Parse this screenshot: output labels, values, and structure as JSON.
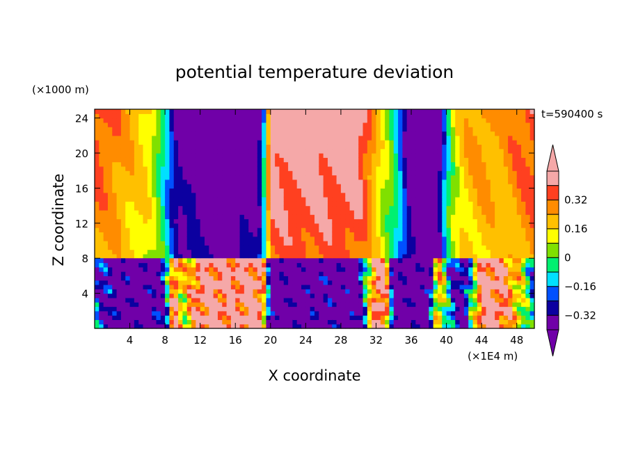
{
  "chart_data": {
    "type": "heatmap",
    "title": "potential temperature deviation",
    "xlabel": "X coordinate",
    "ylabel": "Z coordinate",
    "x_unit_label": "(×1E4 m)",
    "y_unit_label": "(×1000 m)",
    "time_label": "t=590400 s",
    "xlim": [
      0,
      50
    ],
    "ylim": [
      0,
      25
    ],
    "x_ticks": [
      4,
      8,
      12,
      16,
      20,
      24,
      28,
      32,
      36,
      40,
      44,
      48
    ],
    "x_tick_labels": [
      "4",
      "8",
      "12",
      "16",
      "20",
      "24",
      "28",
      "32",
      "36",
      "40",
      "44",
      "48"
    ],
    "y_ticks": [
      4,
      8,
      12,
      16,
      20,
      24
    ],
    "y_tick_labels": [
      "4",
      "8",
      "12",
      "16",
      "20",
      "24"
    ],
    "colorbar": {
      "levels": [
        -0.4,
        -0.32,
        -0.24,
        -0.16,
        -0.08,
        0,
        0.08,
        0.16,
        0.24,
        0.32,
        0.4
      ],
      "tick_values": [
        -0.32,
        -0.16,
        0,
        0.16,
        0.32
      ],
      "tick_labels": [
        "−0.32",
        "−0.16",
        "0",
        "0.16",
        "0.32"
      ],
      "below_color": "#7000a8",
      "above_color": "#f5a8a8",
      "colors": [
        "#7000a8",
        "#0c00a0",
        "#0050ff",
        "#00e0ff",
        "#00f070",
        "#80e000",
        "#ffff00",
        "#ffc000",
        "#ff8c00",
        "#ff4020",
        "#f5a8a8"
      ]
    },
    "upper_layer_profile": {
      "description_x": [
        0,
        2,
        4,
        6,
        7,
        8,
        9,
        10,
        11,
        12,
        14,
        16,
        17,
        18,
        19,
        20,
        22,
        24,
        26,
        28,
        30,
        31,
        32,
        33,
        34,
        35,
        36,
        37,
        38,
        39,
        40,
        41,
        42,
        44,
        46,
        48,
        50
      ],
      "values": [
        0.34,
        0.3,
        0.22,
        0.16,
        0.06,
        -0.1,
        -0.3,
        -0.4,
        -0.36,
        -0.45,
        -0.5,
        -0.48,
        -0.38,
        -0.42,
        -0.3,
        0.45,
        0.45,
        0.45,
        0.45,
        0.45,
        0.45,
        0.34,
        0.2,
        0.08,
        -0.02,
        -0.22,
        -0.45,
        -0.5,
        -0.5,
        -0.45,
        -0.1,
        0.1,
        0.2,
        0.26,
        0.22,
        0.3,
        0.36
      ]
    },
    "lower_layer_profile": {
      "x": [
        0,
        2,
        4,
        6,
        8,
        9,
        10,
        12,
        14,
        16,
        18,
        19,
        20,
        22,
        24,
        26,
        28,
        30,
        32,
        33,
        34,
        36,
        38,
        39,
        40,
        41,
        42,
        44,
        46,
        48,
        50
      ],
      "values": [
        -0.2,
        -0.4,
        -0.45,
        -0.45,
        -0.3,
        0.45,
        0.1,
        0.45,
        0.45,
        0.45,
        0.45,
        0.45,
        -0.45,
        -0.45,
        -0.45,
        -0.4,
        -0.45,
        -0.45,
        0.45,
        0.45,
        -0.45,
        -0.45,
        -0.45,
        0.3,
        -0.1,
        -0.3,
        -0.4,
        0.45,
        0.45,
        0.2,
        -0.2
      ]
    }
  }
}
